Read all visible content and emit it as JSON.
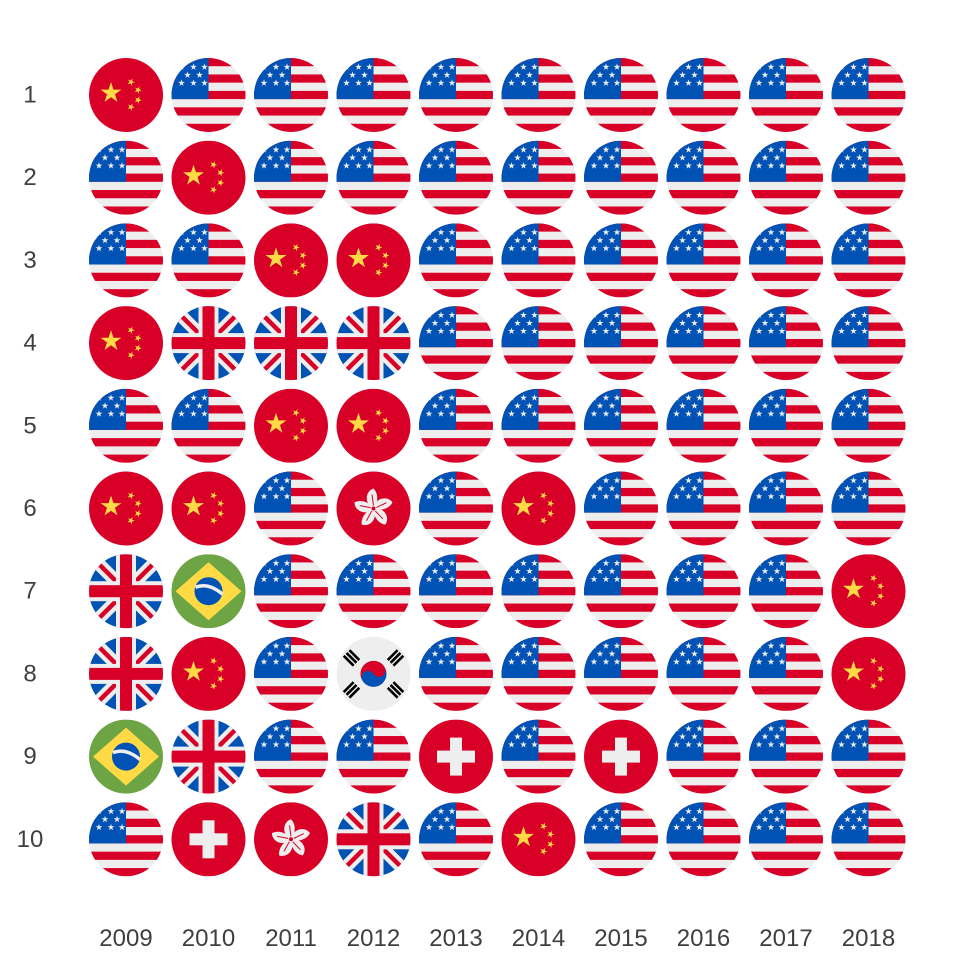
{
  "chart_data": {
    "type": "table",
    "title": "",
    "xlabel": "",
    "ylabel": "",
    "columns": [
      "2009",
      "2010",
      "2011",
      "2012",
      "2013",
      "2014",
      "2015",
      "2016",
      "2017",
      "2018"
    ],
    "rows": [
      "1",
      "2",
      "3",
      "4",
      "5",
      "6",
      "7",
      "8",
      "9",
      "10"
    ],
    "country_codes": {
      "us": "United States flag",
      "cn": "China flag",
      "gb": "United Kingdom flag",
      "hk": "Hong Kong flag",
      "br": "Brazil flag",
      "kr": "South Korea flag",
      "ch": "Switzerland flag"
    },
    "cells": [
      [
        "cn",
        "us",
        "us",
        "us",
        "us",
        "us",
        "us",
        "us",
        "us",
        "us"
      ],
      [
        "us",
        "cn",
        "us",
        "us",
        "us",
        "us",
        "us",
        "us",
        "us",
        "us"
      ],
      [
        "us",
        "us",
        "cn",
        "cn",
        "us",
        "us",
        "us",
        "us",
        "us",
        "us"
      ],
      [
        "cn",
        "gb",
        "gb",
        "gb",
        "us",
        "us",
        "us",
        "us",
        "us",
        "us"
      ],
      [
        "us",
        "us",
        "cn",
        "cn",
        "us",
        "us",
        "us",
        "us",
        "us",
        "us"
      ],
      [
        "cn",
        "cn",
        "us",
        "hk",
        "us",
        "cn",
        "us",
        "us",
        "us",
        "us"
      ],
      [
        "gb",
        "br",
        "us",
        "us",
        "us",
        "us",
        "us",
        "us",
        "us",
        "cn"
      ],
      [
        "gb",
        "cn",
        "us",
        "kr",
        "us",
        "us",
        "us",
        "us",
        "us",
        "cn"
      ],
      [
        "br",
        "gb",
        "us",
        "us",
        "ch",
        "us",
        "ch",
        "us",
        "us",
        "us"
      ],
      [
        "us",
        "ch",
        "hk",
        "gb",
        "us",
        "cn",
        "us",
        "us",
        "us",
        "us"
      ]
    ],
    "colors": {
      "us_red": "#d80027",
      "us_white": "#eeeeee",
      "us_blue": "#0052b4",
      "cn_red": "#d80027",
      "cn_yellow": "#ffda44",
      "gb_blue": "#0052b4",
      "gb_red": "#d80027",
      "br_green": "#6da544",
      "br_yellow": "#ffda44",
      "br_blue": "#0052b4",
      "kr_white": "#eeeeee",
      "kr_red": "#d80027",
      "kr_blue": "#0052b4",
      "kr_black": "#000000",
      "ch_red": "#d80027",
      "hk_red": "#d80027",
      "label_color": "#3f3f3f"
    },
    "grid": false,
    "legend": "none"
  }
}
